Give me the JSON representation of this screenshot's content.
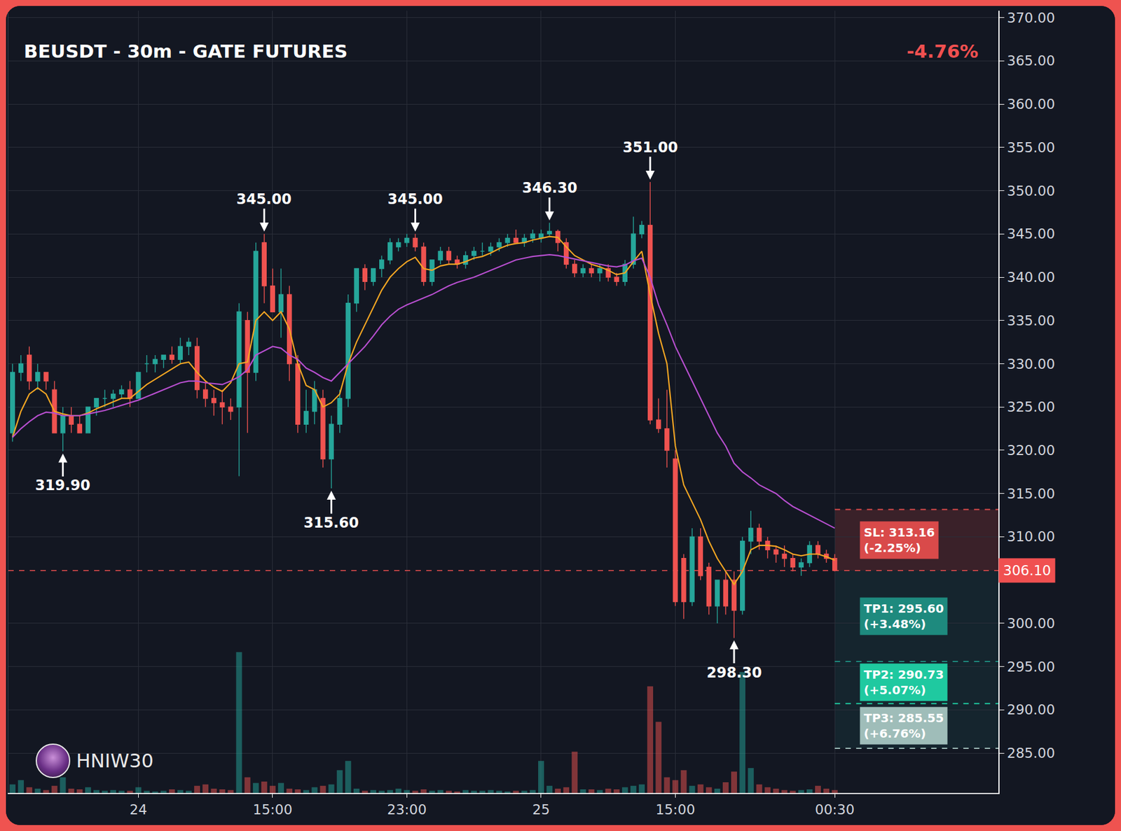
{
  "chart_data": {
    "type": "candlestick",
    "title": "BEUSDT - 30m - GATE FUTURES",
    "change": {
      "value": -4.76,
      "label": "-4.76%"
    },
    "watermark": "HNIW30",
    "categories": [
      null,
      null,
      null,
      null,
      null,
      null,
      null,
      null,
      null,
      null,
      null,
      null,
      null,
      null,
      null,
      "24",
      null,
      null,
      null,
      null,
      null,
      null,
      null,
      null,
      null,
      null,
      null,
      null,
      null,
      null,
      null,
      "15:00",
      null,
      null,
      null,
      null,
      null,
      null,
      null,
      null,
      null,
      null,
      null,
      null,
      null,
      null,
      null,
      "23:00",
      null,
      null,
      null,
      null,
      null,
      null,
      null,
      null,
      null,
      null,
      null,
      null,
      null,
      null,
      null,
      "25",
      null,
      null,
      null,
      null,
      null,
      null,
      null,
      null,
      null,
      null,
      null,
      null,
      null,
      null,
      null,
      "15:00",
      null,
      null,
      null,
      null,
      null,
      null,
      null,
      null,
      null,
      null,
      null,
      null,
      null,
      null,
      null,
      null,
      null,
      null,
      "00:30"
    ],
    "candles": {
      "up_color": "#26a69a",
      "down_color": "#ef5350",
      "open": [
        322,
        329,
        331,
        328,
        329,
        327,
        322,
        324,
        323,
        322,
        325,
        326,
        326,
        326.5,
        327,
        326,
        330,
        330,
        330.5,
        331,
        330.5,
        332,
        332,
        327,
        326,
        325.5,
        325,
        325,
        335,
        329,
        344,
        339,
        336,
        338,
        330,
        323,
        324.5,
        326,
        319,
        323,
        326,
        337,
        341,
        339.5,
        341,
        342,
        343.5,
        344,
        344.5,
        343.5,
        339.5,
        342,
        343,
        342,
        341.5,
        342.5,
        343,
        343,
        343.5,
        344,
        344.5,
        344,
        344.5,
        344.5,
        345,
        345.3,
        344,
        341.5,
        340.5,
        341,
        340.5,
        341,
        340,
        339.5,
        341.5,
        345,
        346,
        323.5,
        322.5,
        319,
        307.5,
        302.5,
        310,
        306.5,
        302,
        305,
        305,
        301.5,
        309.5,
        311,
        309.5,
        308.5,
        308,
        307.5,
        306.5,
        307,
        309,
        308,
        307.5
      ],
      "high": [
        330,
        331,
        332,
        330,
        329,
        328,
        325,
        325,
        324,
        325,
        326,
        327,
        327,
        327.5,
        328,
        329,
        331,
        331,
        331,
        332,
        333,
        333,
        333,
        328,
        327,
        327,
        326,
        337,
        336,
        344,
        345,
        341,
        341,
        339,
        331,
        327,
        328,
        327,
        324,
        327,
        338,
        341,
        341.5,
        341,
        342.5,
        344.5,
        344.5,
        345,
        345,
        344,
        342,
        343.5,
        343.5,
        342.5,
        343,
        343.5,
        344,
        344,
        344.5,
        345,
        345.5,
        345,
        345.5,
        345.5,
        346.3,
        345.5,
        344.5,
        342,
        341.5,
        341.5,
        341.5,
        341.5,
        340.5,
        342,
        347,
        346.5,
        351,
        326,
        327,
        320,
        308,
        311,
        311,
        307,
        305,
        306,
        306,
        310,
        313,
        311.5,
        310,
        309,
        309,
        308,
        307.5,
        309.5,
        309.5,
        308.5,
        308
      ],
      "low": [
        321,
        328,
        327,
        327,
        327,
        322,
        319.9,
        322,
        322,
        322,
        324,
        325,
        325,
        326,
        325,
        326,
        329,
        329,
        329.5,
        330,
        330,
        331,
        326,
        325,
        324,
        323,
        323.5,
        317,
        322,
        328,
        337,
        336,
        333,
        328,
        322,
        322,
        323,
        318,
        315.6,
        322,
        325,
        336,
        338.5,
        339,
        340,
        341.5,
        343,
        343.5,
        343,
        339,
        339,
        341.5,
        341.5,
        341,
        341,
        342,
        342.5,
        342.5,
        343,
        343.5,
        344,
        343.5,
        344,
        344,
        344.8,
        343,
        341,
        340,
        340,
        340,
        339.5,
        339.5,
        339,
        339,
        341,
        344.5,
        323,
        322,
        318,
        302,
        300.5,
        302,
        305,
        301,
        300,
        301,
        298.3,
        301,
        308,
        308.5,
        307.5,
        307,
        306.5,
        306,
        305.5,
        306.5,
        307.5,
        307,
        306
      ],
      "close": [
        329,
        330,
        328,
        329,
        328,
        322,
        324,
        323,
        322,
        325,
        326,
        326,
        326.5,
        327,
        326,
        329,
        330,
        330.5,
        331,
        330.5,
        332,
        332.5,
        327,
        326,
        325.5,
        325,
        324.5,
        336,
        329,
        343,
        339,
        336,
        338,
        330,
        323,
        324.5,
        327,
        319,
        323,
        326,
        337,
        341,
        339.5,
        341,
        342,
        344,
        344,
        344.5,
        343.5,
        339.5,
        342,
        343,
        342,
        341.5,
        342.5,
        343,
        343,
        343.5,
        344,
        344.5,
        344,
        344.5,
        345,
        345,
        345.3,
        344,
        341.5,
        340.5,
        341,
        340.5,
        341,
        340,
        339.5,
        341.5,
        345,
        346,
        323.5,
        322.5,
        320,
        302.5,
        302.5,
        310,
        305.5,
        302,
        305,
        302,
        301.5,
        309.5,
        311,
        309.5,
        308.5,
        308,
        307.5,
        306.5,
        307,
        309,
        308,
        307.5,
        306.1
      ]
    },
    "series": [
      {
        "color": "#f5a623",
        "values": [
          321.5,
          324.5,
          326.5,
          327.2,
          326.5,
          324.5,
          324.2,
          324,
          324,
          324.3,
          324.8,
          325.2,
          325.6,
          326,
          326,
          326.8,
          327.6,
          328.2,
          328.8,
          329.4,
          330,
          330.2,
          329,
          328,
          327.3,
          326.8,
          327.8,
          330,
          330.2,
          335,
          336,
          335,
          336,
          334,
          330,
          327.5,
          327,
          325,
          325.5,
          326.5,
          330,
          332.5,
          334.5,
          336.5,
          338.5,
          340,
          341,
          341.8,
          342.3,
          341,
          340.8,
          341.3,
          341.5,
          341.5,
          341.8,
          342.2,
          342.4,
          342.8,
          343.3,
          343.7,
          343.9,
          344,
          344.3,
          344.5,
          344.7,
          344.6,
          343.5,
          342.5,
          342,
          341.5,
          341.2,
          340.8,
          340.3,
          340.5,
          341.8,
          343,
          338,
          333.5,
          330,
          320.5,
          316,
          314,
          312,
          309.5,
          307.5,
          306,
          304.5,
          306,
          308.5,
          309,
          309,
          308.9,
          308.5,
          308,
          307.8,
          308,
          308,
          307.7,
          307.3
        ]
      },
      {
        "color": "#b84fd0",
        "values": [
          321.5,
          322.5,
          323.3,
          324,
          324.4,
          324.3,
          324,
          324,
          324,
          324.2,
          324.4,
          324.6,
          324.9,
          325.2,
          325.5,
          325.8,
          326.2,
          326.6,
          327,
          327.4,
          327.8,
          328,
          328,
          327.8,
          327.7,
          327.6,
          328,
          328.5,
          329.3,
          331,
          331.5,
          332,
          331.8,
          331,
          330.5,
          329.5,
          329,
          328.4,
          328,
          329,
          330,
          331,
          332,
          333.2,
          334.5,
          335.5,
          336.3,
          336.8,
          337.2,
          337.6,
          338,
          338.5,
          339,
          339.4,
          339.7,
          340,
          340.4,
          340.8,
          341.2,
          341.6,
          342,
          342.2,
          342.4,
          342.5,
          342.6,
          342.5,
          342.3,
          342.1,
          341.9,
          341.7,
          341.5,
          341.3,
          341.2,
          341.4,
          341.9,
          342.2,
          340,
          336.8,
          334.5,
          332,
          330,
          328,
          326,
          324,
          322,
          320.5,
          318.5,
          317.5,
          316.8,
          316,
          315.5,
          315,
          314.2,
          313.5,
          313,
          312.5,
          312,
          311.5,
          311
        ]
      }
    ],
    "volume": {
      "axis": "y2",
      "values": [
        12,
        18,
        8,
        6,
        4,
        10,
        22,
        6,
        5,
        8,
        4,
        3,
        4,
        3,
        3,
        8,
        3,
        2,
        3,
        5,
        4,
        3,
        10,
        12,
        6,
        5,
        4,
        198,
        22,
        14,
        16,
        10,
        14,
        6,
        5,
        4,
        8,
        10,
        12,
        32,
        45,
        6,
        3,
        4,
        3,
        4,
        6,
        4,
        3,
        5,
        3,
        4,
        3,
        2,
        4,
        3,
        3,
        4,
        3,
        2,
        3,
        3,
        4,
        45,
        10,
        6,
        8,
        58,
        5,
        5,
        4,
        6,
        5,
        8,
        10,
        12,
        150,
        100,
        22,
        18,
        32,
        10,
        12,
        8,
        6,
        15,
        30,
        170,
        35,
        12,
        8,
        6,
        4,
        3,
        4,
        5,
        10,
        6,
        4
      ]
    },
    "xlim": [
      -0.5,
      117.5
    ],
    "ylim": [
      280.4,
      370.8
    ],
    "yticks": [
      {
        "value": 285,
        "label": "285.00"
      },
      {
        "value": 290,
        "label": "290.00"
      },
      {
        "value": 295,
        "label": "295.00"
      },
      {
        "value": 300,
        "label": "300.00"
      },
      {
        "value": 310,
        "label": "310.00"
      },
      {
        "value": 315,
        "label": "315.00"
      },
      {
        "value": 320,
        "label": "320.00"
      },
      {
        "value": 325,
        "label": "325.00"
      },
      {
        "value": 330,
        "label": "330.00"
      },
      {
        "value": 335,
        "label": "335.00"
      },
      {
        "value": 340,
        "label": "340.00"
      },
      {
        "value": 345,
        "label": "345.00"
      },
      {
        "value": 350,
        "label": "350.00"
      },
      {
        "value": 355,
        "label": "355.00"
      },
      {
        "value": 360,
        "label": "360.00"
      },
      {
        "value": 365,
        "label": "365.00"
      },
      {
        "value": 370,
        "label": "370.00"
      }
    ],
    "y2lim": [
      0,
      1100
    ],
    "y2ticks": [],
    "grid": true,
    "annotations": [
      {
        "index": 6,
        "value": 319.9,
        "label": "319.90",
        "kind": "low"
      },
      {
        "index": 30,
        "value": 345,
        "label": "345.00",
        "kind": "high"
      },
      {
        "index": 38,
        "value": 315.6,
        "label": "315.60",
        "kind": "low"
      },
      {
        "index": 48,
        "value": 345,
        "label": "345.00",
        "kind": "high"
      },
      {
        "index": 64,
        "value": 346.3,
        "label": "346.30",
        "kind": "high"
      },
      {
        "index": 76,
        "value": 351,
        "label": "351.00",
        "kind": "high"
      },
      {
        "index": 86,
        "value": 298.3,
        "label": "298.30",
        "kind": "low"
      }
    ],
    "last_price": {
      "value": 306.1,
      "label": "306.10",
      "color": "#f05050"
    },
    "levels": [
      {
        "label": "SL: 313.16",
        "value": 313.16,
        "change": -2.25,
        "change_label": "(-2.25%)",
        "color": "#d94a4a"
      },
      {
        "label": "TP1: 295.60",
        "value": 295.6,
        "change": 3.48,
        "change_label": "(+3.48%)",
        "color": "#1e8a7e"
      },
      {
        "label": "TP2: 290.73",
        "value": 290.73,
        "change": 5.07,
        "change_label": "(+5.07%)",
        "color": "#1fc9a0"
      },
      {
        "label": "TP3: 285.55",
        "value": 285.55,
        "change": 6.76,
        "change_label": "(+6.76%)",
        "color": "#9fbdb9"
      }
    ]
  }
}
